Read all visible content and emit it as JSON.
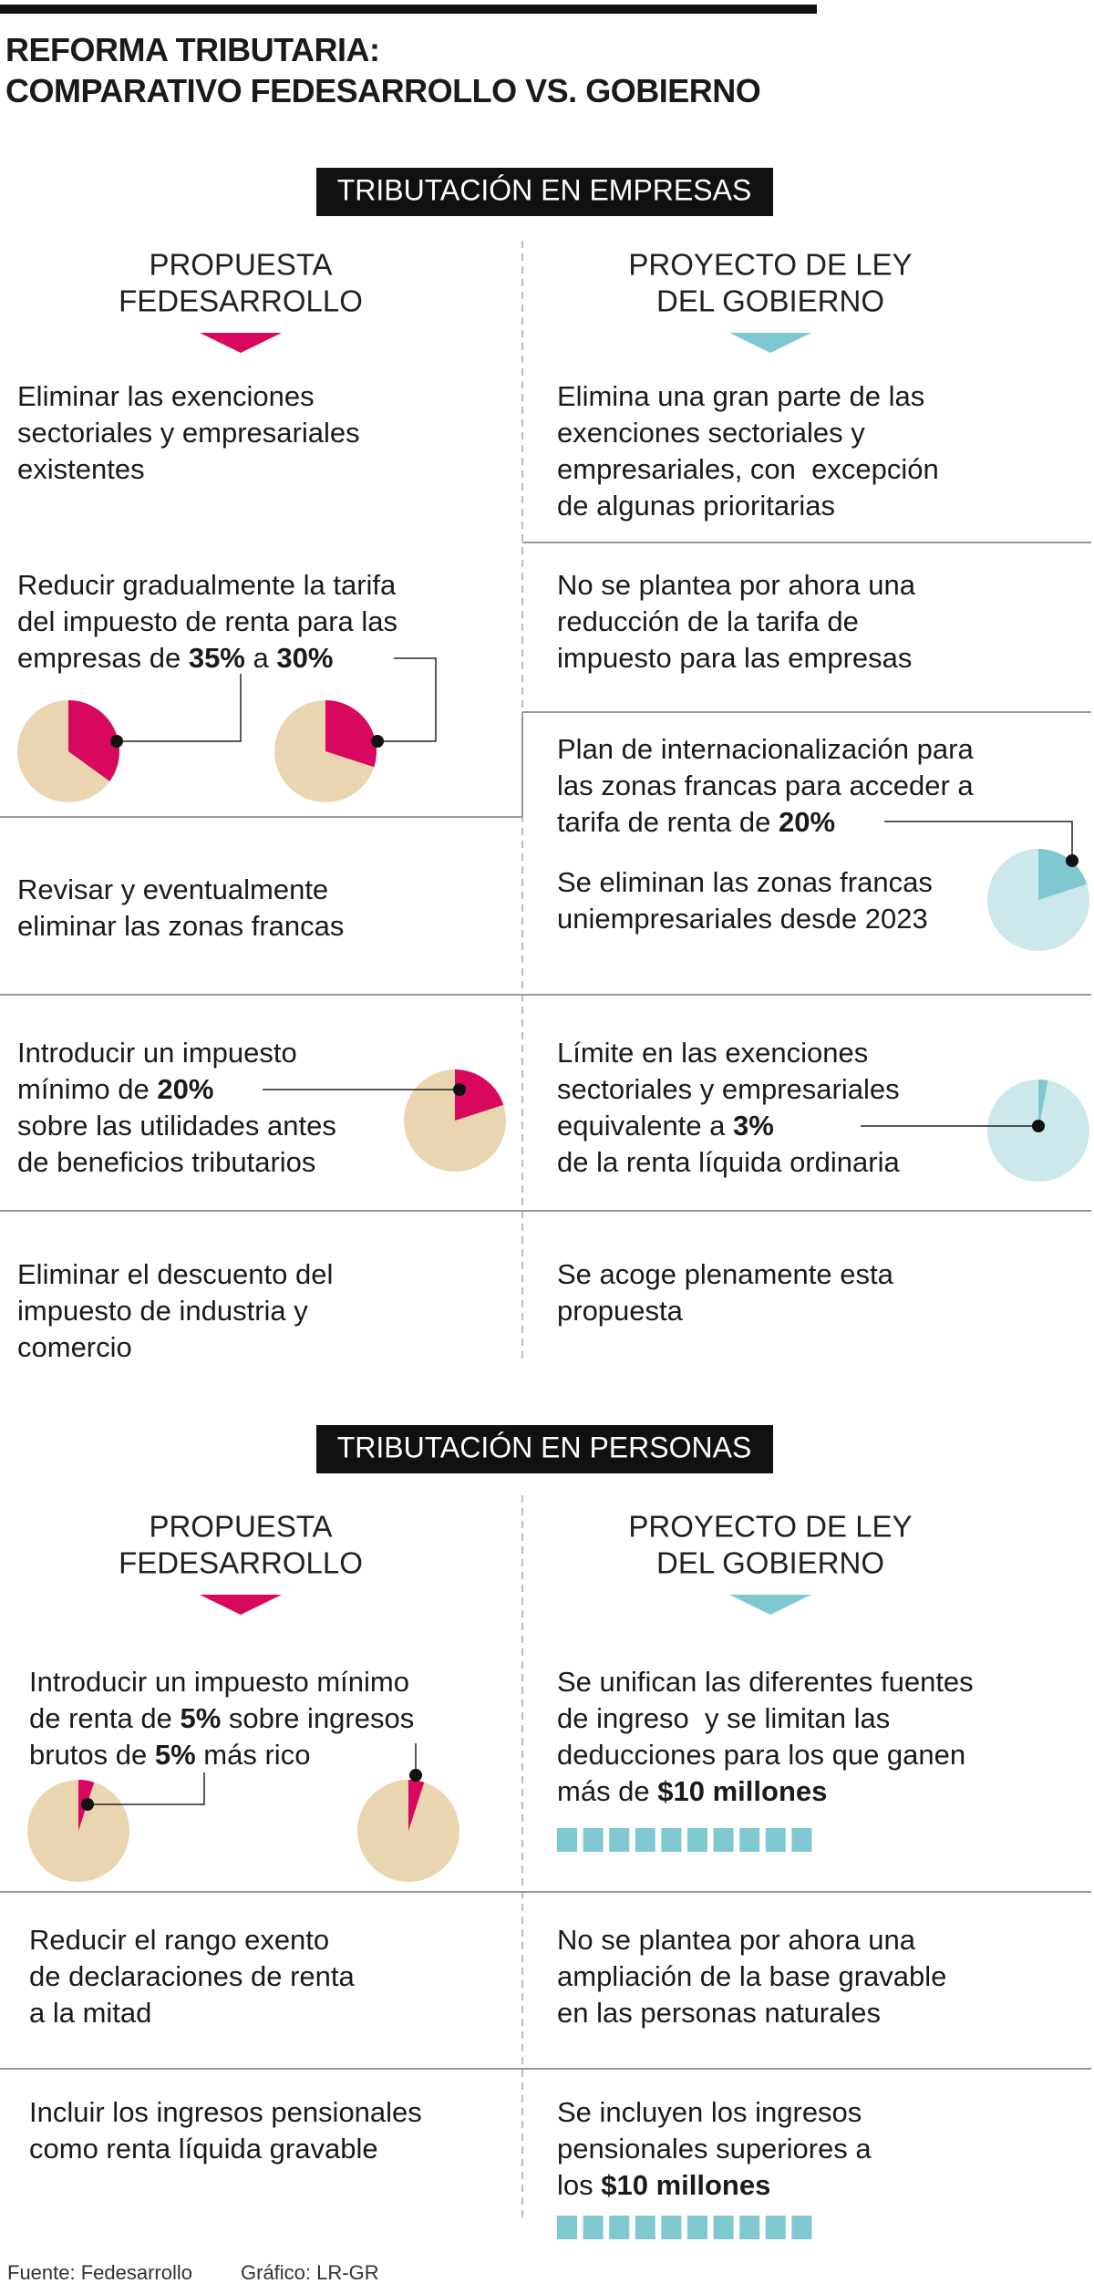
{
  "title_lines": [
    "REFORMA TRIBUTARIA:",
    "COMPARATIVO FEDESARROLLO VS. GOBIERNO"
  ],
  "sections": [
    {
      "heading": "TRIBUTACIÓN EN EMPRESAS",
      "left_header": [
        "PROPUESTA",
        "FEDESARROLLO"
      ],
      "right_header": [
        "PROYECTO DE LEY",
        "DEL GOBIERNO"
      ],
      "blocks": [
        {
          "lines": [
            "Eliminar las exenciones",
            "sectoriales y empresariales",
            "existentes"
          ]
        },
        {
          "lines": [
            "Elimina una gran parte de las",
            "exenciones sectoriales y",
            "empresariales, con  excepción",
            "de algunas prioritarias"
          ]
        },
        {
          "lines": [
            "Reducir gradualmente la tarifa",
            "del impuesto de renta para las",
            [
              "empresas de ",
              {
                "text": "35%",
                "bold": true
              },
              " a ",
              {
                "text": "30%",
                "bold": true
              }
            ]
          ],
          "pies": [
            {
              "value": 35,
              "color": "#d8085e",
              "base": "#e9d6b0"
            },
            {
              "value": 30,
              "color": "#d8085e",
              "base": "#e9d6b0"
            }
          ]
        },
        {
          "lines": [
            "No se plantea por ahora una",
            "reducción de la tarifa de",
            "impuesto para las empresas"
          ]
        },
        {
          "lines": [
            "Plan de internacionalización para",
            "las zonas francas para acceder a",
            [
              "tarifa de renta de ",
              {
                "text": "20%",
                "bold": true
              }
            ]
          ],
          "pies": [
            {
              "value": 20,
              "color": "#7fc8d0",
              "base": "#cce8eb"
            }
          ]
        },
        {
          "lines": [
            "Se eliminan las zonas francas",
            "uniempresariales desde 2023"
          ]
        },
        {
          "lines": [
            "Revisar y eventualmente",
            "eliminar las zonas francas"
          ]
        },
        {
          "lines": [
            "Introducir un impuesto",
            [
              "mínimo de ",
              {
                "text": "20%",
                "bold": true
              }
            ],
            "sobre las utilidades antes",
            "de beneficios tributarios"
          ],
          "pies": [
            {
              "value": 20,
              "color": "#d8085e",
              "base": "#e9d6b0"
            }
          ]
        },
        {
          "lines": [
            "Límite en las exenciones",
            "sectoriales y empresariales",
            [
              "equivalente a ",
              {
                "text": "3%",
                "bold": true
              }
            ],
            "de la renta líquida ordinaria"
          ],
          "pies": [
            {
              "value": 3,
              "color": "#7fc8d0",
              "base": "#cce8eb"
            }
          ]
        },
        {
          "lines": [
            "Eliminar el descuento del",
            "impuesto de industria y",
            "comercio"
          ]
        },
        {
          "lines": [
            "Se acoge plenamente esta",
            "propuesta"
          ]
        }
      ]
    },
    {
      "heading": "TRIBUTACIÓN EN PERSONAS",
      "left_header": [
        "PROPUESTA",
        "FEDESARROLLO"
      ],
      "right_header": [
        "PROYECTO DE LEY",
        "DEL GOBIERNO"
      ],
      "blocks": [
        {
          "lines": [
            "Introducir un impuesto mínimo",
            [
              "de renta de ",
              {
                "text": "5%",
                "bold": true
              },
              " sobre ingresos"
            ],
            [
              "brutos de ",
              {
                "text": "5%",
                "bold": true
              },
              " más rico"
            ]
          ],
          "pies": [
            {
              "value": 5,
              "color": "#d8085e",
              "base": "#e9d6b0"
            },
            {
              "value": 5,
              "color": "#d8085e",
              "base": "#e9d6b0"
            }
          ]
        },
        {
          "lines": [
            "Se unifican las diferentes fuentes",
            "de ingreso  y se limitan las",
            "deducciones para los que ganen",
            [
              "más de ",
              {
                "text": "$10 millones",
                "bold": true
              }
            ]
          ]
        },
        {
          "lines": [
            "Reducir el rango exento",
            "de declaraciones de renta",
            "a la mitad"
          ]
        },
        {
          "lines": [
            "No se plantea por ahora una",
            "ampliación de la base gravable",
            "en las personas naturales"
          ]
        },
        {
          "lines": [
            "Incluir los ingresos pensionales",
            "como renta líquida gravable"
          ]
        },
        {
          "lines": [
            "Se incluyen los ingresos",
            "pensionales superiores a",
            [
              "los ",
              {
                "text": "$10 millones",
                "bold": true
              }
            ]
          ]
        }
      ]
    }
  ],
  "footer": {
    "source": "Fuente: Fedesarrollo",
    "credit": "Gráfico: LR-GR"
  }
}
